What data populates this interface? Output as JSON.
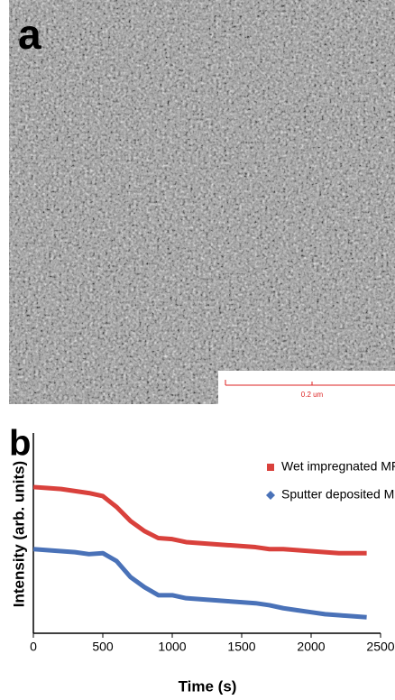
{
  "image_panel": {
    "label": "a",
    "scale_bar": "0.2 um"
  },
  "chart_data": {
    "type": "line",
    "panel_label": "b",
    "x_label": "Time (s)",
    "y_label": "Intensity (arb. units)",
    "x": [
      0,
      100,
      200,
      300,
      400,
      500,
      600,
      700,
      800,
      900,
      1000,
      1100,
      1200,
      1300,
      1400,
      1500,
      1600,
      1700,
      1800,
      1900,
      2000,
      2100,
      2200,
      2300,
      2400
    ],
    "xlim": [
      0,
      2500
    ],
    "xticks": [
      0,
      500,
      1000,
      1500,
      2000,
      2500
    ],
    "ylim": [
      0,
      100
    ],
    "legend": "upper right",
    "series": [
      {
        "name": "Wet impregnated MFI",
        "color": "#d9413c",
        "marker": "square",
        "values": [
          73,
          72.5,
          72,
          71,
          70,
          68.5,
          63,
          56,
          51,
          47.5,
          47,
          45.5,
          45,
          44.5,
          44,
          43.5,
          43,
          42,
          42,
          41.5,
          41,
          40.5,
          40,
          40,
          40
        ]
      },
      {
        "name": "Sputter deposited MFI",
        "color": "#4a72b8",
        "marker": "diamond",
        "values": [
          42,
          41.5,
          41,
          40.5,
          39.5,
          40,
          36,
          28,
          23,
          19,
          19,
          17.5,
          17,
          16.5,
          16,
          15.5,
          15,
          14,
          12.5,
          11.5,
          10.5,
          9.5,
          9,
          8.5,
          8
        ]
      }
    ]
  }
}
